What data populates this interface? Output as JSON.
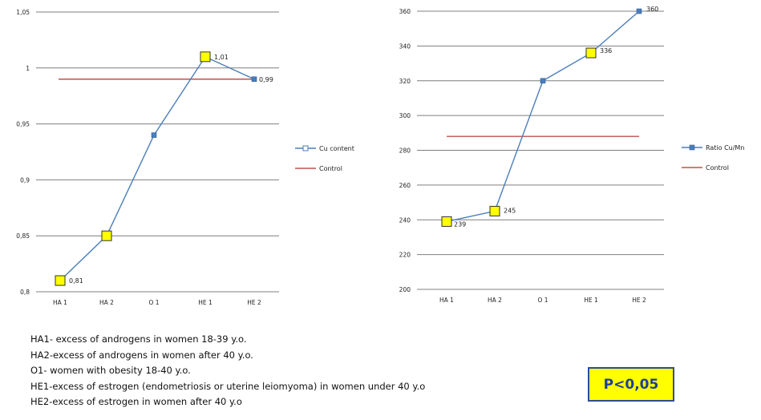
{
  "chart_data": [
    {
      "type": "line",
      "categories": [
        "HA 1",
        "HA 2",
        "O 1",
        "HE 1",
        "HE 2"
      ],
      "ylim": [
        0.8,
        1.05
      ],
      "yticks": [
        "0,8",
        "0,85",
        "0,9",
        "0,95",
        "1",
        "1,05"
      ],
      "series": [
        {
          "name": "Cu content",
          "values": [
            0.81,
            0.85,
            0.94,
            1.01,
            0.99
          ],
          "color": "#4a7ebb",
          "labels": [
            "0,81",
            "",
            "",
            "1,01",
            "0,99"
          ]
        },
        {
          "name": "Control",
          "values": [
            0.99,
            0.99,
            0.99,
            0.99,
            0.99
          ],
          "color": "#c0504d"
        }
      ],
      "grid": true,
      "legend": "right"
    },
    {
      "type": "line",
      "categories": [
        "HA 1",
        "HA 2",
        "O 1",
        "HE 1",
        "HE 2"
      ],
      "ylim": [
        200,
        360
      ],
      "yticks": [
        "200",
        "220",
        "240",
        "260",
        "280",
        "300",
        "320",
        "340",
        "360"
      ],
      "series": [
        {
          "name": "Ratio Cu/Mn",
          "values": [
            239,
            245,
            320,
            336,
            360
          ],
          "color": "#4a7ebb",
          "labels": [
            "239",
            "245",
            "",
            "336",
            "360"
          ]
        },
        {
          "name": "Control",
          "values": [
            288,
            288,
            288,
            288,
            288
          ],
          "color": "#c0504d"
        }
      ],
      "grid": true,
      "legend": "right"
    }
  ],
  "footnotes": [
    "HA1- excess of androgens in women 18-39 y.o.",
    "HA2-excess of androgens in women after 40 y.o.",
    "O1- women with obesity 18-40 y.o.",
    "HE1-excess of estrogen (endometriosis or uterine leiomyoma)  in women under 40 y.o",
    "HE2-excess of estrogen in women after 40 y.o"
  ],
  "pvalue": "P<0,05",
  "colors": {
    "marker_fill": "#ffff00",
    "marker_stroke": "#333333",
    "series_line": "#4a7ebb",
    "control_line": "#c0504d",
    "pbox_border": "#2e4a9a",
    "pbox_text": "#1f3f9a"
  }
}
